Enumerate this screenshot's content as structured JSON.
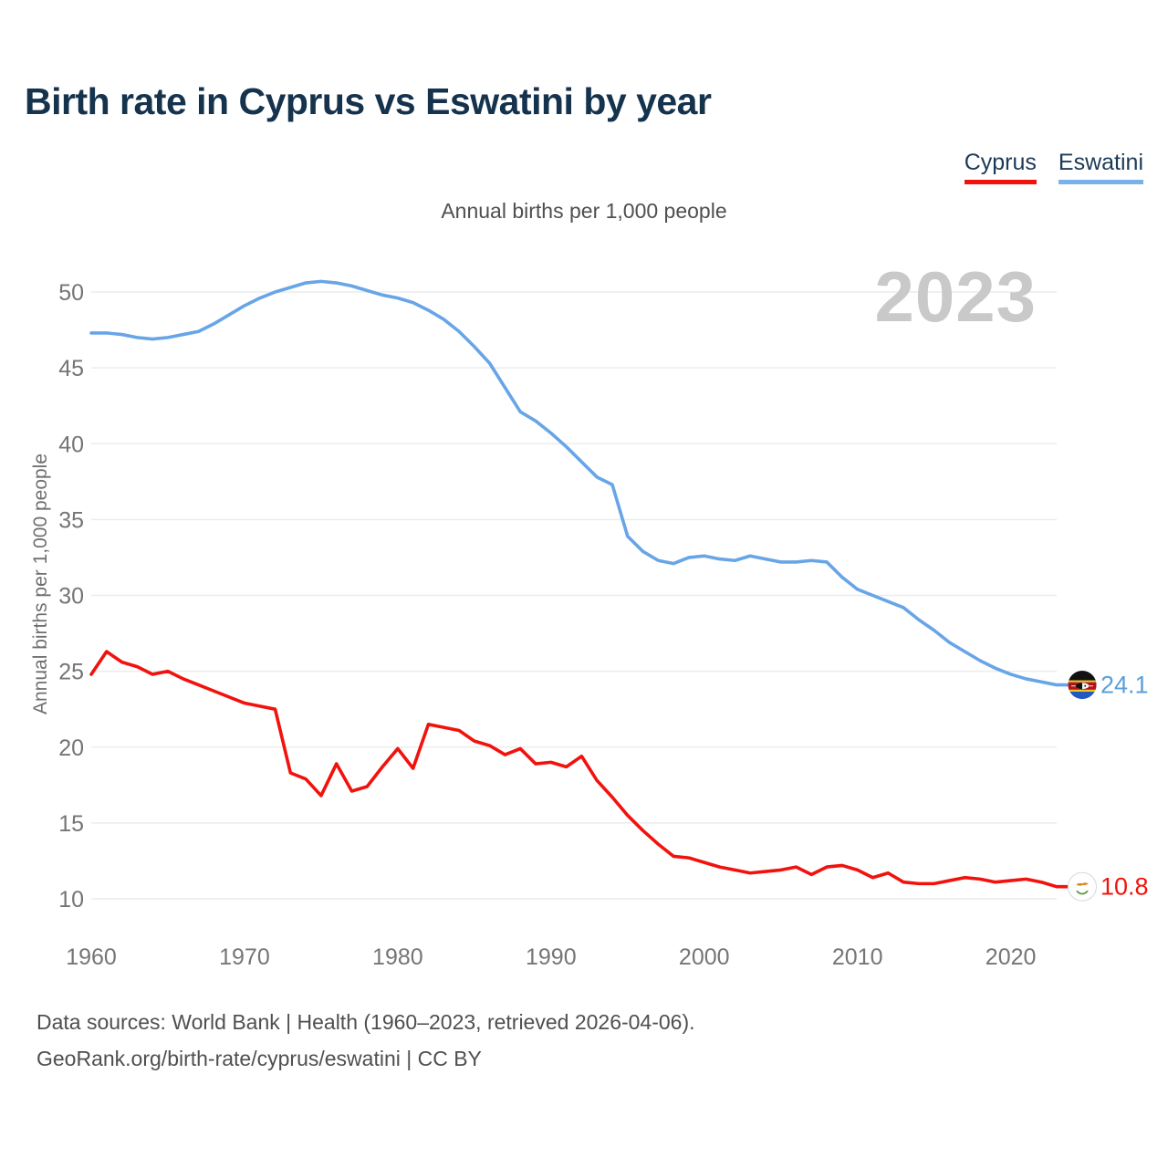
{
  "title": "Birth rate in Cyprus vs Eswatini by year",
  "subtitle": "Annual births per 1,000 people",
  "watermark": "2023",
  "legend": [
    {
      "label": "Cyprus",
      "color": "#f2120d"
    },
    {
      "label": "Eswatini",
      "color": "#79b1e8"
    }
  ],
  "y_axis": {
    "label": "Annual births per 1,000 people",
    "ticks": [
      10,
      15,
      20,
      25,
      30,
      35,
      40,
      45,
      50
    ]
  },
  "x_axis": {
    "ticks": [
      1960,
      1970,
      1980,
      1990,
      2000,
      2010,
      2020
    ]
  },
  "end_labels": {
    "cyprus": "10.8",
    "eswatini": "24.1"
  },
  "icons": {
    "cyprus_flag": "cyprus-flag-icon",
    "eswatini_flag": "eswatini-flag-icon"
  },
  "footer": {
    "line1": "Data sources: World Bank | Health (1960–2023, retrieved 2026-04-06).",
    "line2": "GeoRank.org/birth-rate/cyprus/eswatini | CC BY"
  },
  "chart_data": {
    "type": "line",
    "title": "Birth rate in Cyprus vs Eswatini by year",
    "xlabel": "",
    "ylabel": "Annual births per 1,000 people",
    "xlim": [
      1960,
      2023
    ],
    "ylim": [
      10,
      50
    ],
    "grid": "horizontal",
    "legend_position": "top-right",
    "x": [
      1960,
      1961,
      1962,
      1963,
      1964,
      1965,
      1966,
      1967,
      1968,
      1969,
      1970,
      1971,
      1972,
      1973,
      1974,
      1975,
      1976,
      1977,
      1978,
      1979,
      1980,
      1981,
      1982,
      1983,
      1984,
      1985,
      1986,
      1987,
      1988,
      1989,
      1990,
      1991,
      1992,
      1993,
      1994,
      1995,
      1996,
      1997,
      1998,
      1999,
      2000,
      2001,
      2002,
      2003,
      2004,
      2005,
      2006,
      2007,
      2008,
      2009,
      2010,
      2011,
      2012,
      2013,
      2014,
      2015,
      2016,
      2017,
      2018,
      2019,
      2020,
      2021,
      2022,
      2023
    ],
    "series": [
      {
        "name": "Cyprus",
        "color": "#f2120d",
        "last_value": 10.8,
        "values": [
          24.8,
          26.3,
          25.6,
          25.3,
          24.8,
          25.0,
          24.5,
          24.1,
          23.7,
          23.3,
          22.9,
          22.7,
          22.5,
          18.3,
          17.9,
          16.8,
          18.9,
          17.1,
          17.4,
          18.7,
          19.9,
          18.6,
          21.5,
          21.3,
          21.1,
          20.4,
          20.1,
          19.5,
          19.9,
          18.9,
          19.0,
          18.7,
          19.4,
          17.8,
          16.7,
          15.5,
          14.5,
          13.6,
          12.8,
          12.7,
          12.4,
          12.1,
          11.9,
          11.7,
          11.8,
          11.9,
          12.1,
          11.6,
          12.1,
          12.2,
          11.9,
          11.4,
          11.7,
          11.1,
          11.0,
          11.0,
          11.2,
          11.4,
          11.3,
          11.1,
          11.2,
          11.3,
          11.1,
          10.8
        ]
      },
      {
        "name": "Eswatini",
        "color": "#68a5e7",
        "last_value": 24.1,
        "values": [
          47.3,
          47.3,
          47.2,
          47.0,
          46.9,
          47.0,
          47.2,
          47.4,
          47.9,
          48.5,
          49.1,
          49.6,
          50.0,
          50.3,
          50.6,
          50.7,
          50.6,
          50.4,
          50.1,
          49.8,
          49.6,
          49.3,
          48.8,
          48.2,
          47.4,
          46.4,
          45.3,
          43.7,
          42.1,
          41.5,
          40.7,
          39.8,
          38.8,
          37.8,
          37.3,
          33.9,
          32.9,
          32.3,
          32.1,
          32.5,
          32.6,
          32.4,
          32.3,
          32.6,
          32.4,
          32.2,
          32.2,
          32.3,
          32.2,
          31.2,
          30.4,
          30.0,
          29.6,
          29.2,
          28.4,
          27.7,
          26.9,
          26.3,
          25.7,
          25.2,
          24.8,
          24.5,
          24.3,
          24.1
        ]
      }
    ]
  }
}
